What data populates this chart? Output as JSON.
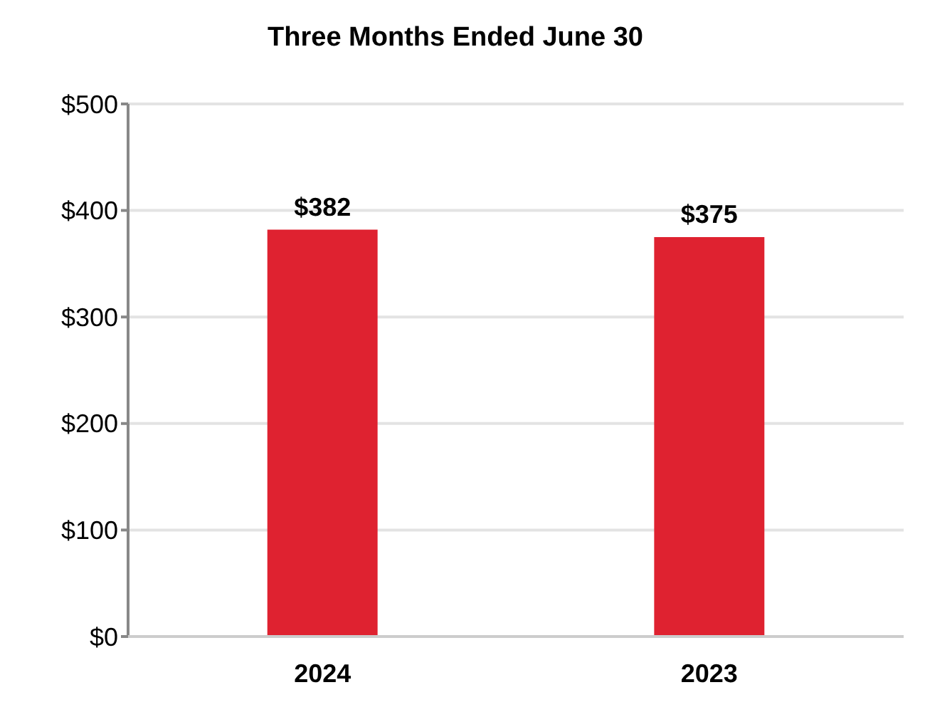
{
  "chart_data": {
    "type": "bar",
    "title": "Three Months Ended June 30",
    "categories": [
      "2024",
      "2023"
    ],
    "values": [
      382,
      375
    ],
    "value_labels": [
      "$382",
      "$375"
    ],
    "color": "#df2230",
    "ylim": [
      0,
      500
    ],
    "yticks": [
      {
        "value": 0,
        "label": "$0"
      },
      {
        "value": 100,
        "label": "$100"
      },
      {
        "value": 200,
        "label": "$200"
      },
      {
        "value": 300,
        "label": "$300"
      },
      {
        "value": 400,
        "label": "$400"
      },
      {
        "value": 500,
        "label": "$500"
      }
    ],
    "grid": "y"
  }
}
